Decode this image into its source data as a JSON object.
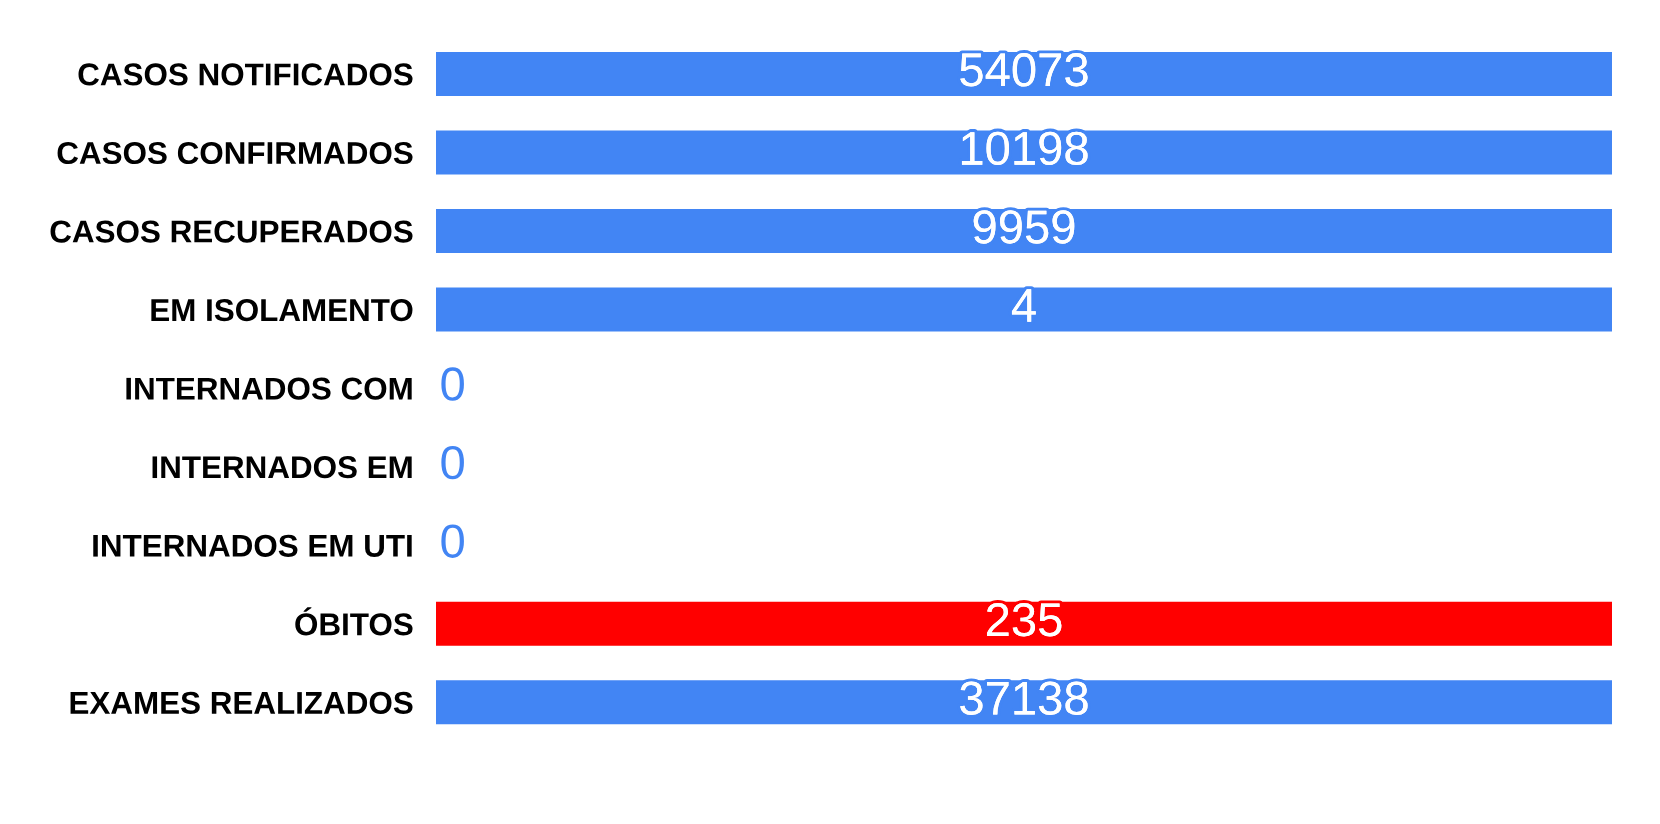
{
  "chart_data": {
    "type": "other",
    "categories": [
      "CASOS NOTIFICADOS",
      "CASOS CONFIRMADOS",
      "CASOS RECUPERADOS",
      "EM ISOLAMENTO",
      "INTERNADOS COM",
      "INTERNADOS EM",
      "INTERNADOS EM UTI",
      "ÓBITOS",
      "EXAMES REALIZADOS"
    ],
    "values": [
      54073,
      10198,
      9959,
      4,
      0,
      0,
      0,
      235,
      37138
    ],
    "colors": [
      "#4285f4",
      "#4285f4",
      "#4285f4",
      "#4285f4",
      "#4285f4",
      "#4285f4",
      "#4285f4",
      "#ff0000",
      "#4285f4"
    ],
    "data_labels": true
  }
}
